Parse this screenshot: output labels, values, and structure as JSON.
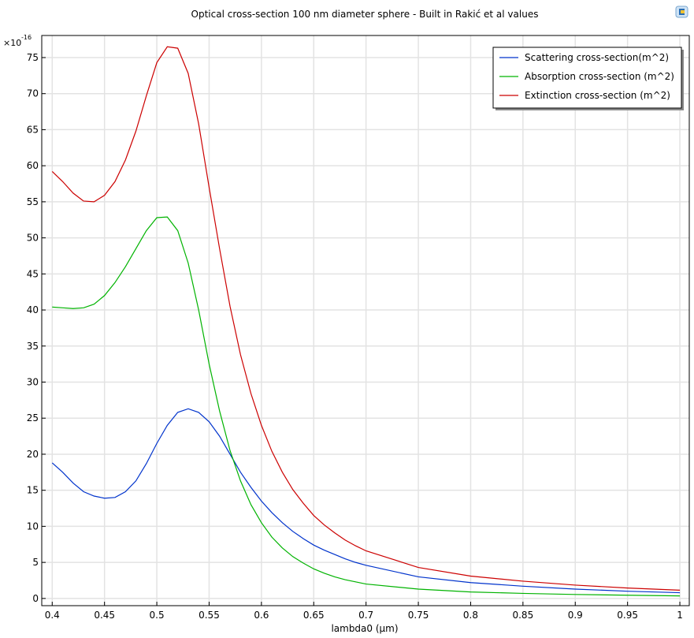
{
  "chart_data": {
    "type": "line",
    "title": "Optical cross-section 100 nm diameter sphere - Built in Rakić et al values",
    "x_label": "lambda0 (µm)",
    "y_multiplier_base": "×10",
    "y_multiplier_exponent": "-16",
    "x": [
      0.4,
      0.41,
      0.42,
      0.43,
      0.44,
      0.45,
      0.46,
      0.47,
      0.48,
      0.49,
      0.5,
      0.51,
      0.52,
      0.53,
      0.54,
      0.55,
      0.56,
      0.57,
      0.58,
      0.59,
      0.6,
      0.61,
      0.62,
      0.63,
      0.64,
      0.65,
      0.66,
      0.67,
      0.68,
      0.69,
      0.7,
      0.75,
      0.8,
      0.85,
      0.9,
      0.95,
      1.0
    ],
    "series": [
      {
        "name": "Scattering cross-section(m^2)",
        "color": "#0033cc",
        "values": [
          18.8,
          17.5,
          16.0,
          14.8,
          14.2,
          13.9,
          14.0,
          14.8,
          16.3,
          18.7,
          21.5,
          24.0,
          25.8,
          26.3,
          25.8,
          24.5,
          22.5,
          20.0,
          17.5,
          15.4,
          13.5,
          11.9,
          10.5,
          9.3,
          8.3,
          7.4,
          6.7,
          6.1,
          5.5,
          5.0,
          4.6,
          3.0,
          2.2,
          1.7,
          1.3,
          1.0,
          0.8
        ]
      },
      {
        "name": "Absorption cross-section (m^2)",
        "color": "#00b300",
        "values": [
          40.4,
          40.3,
          40.2,
          40.3,
          40.8,
          42.0,
          43.8,
          46.0,
          48.5,
          51.0,
          52.8,
          52.9,
          51.0,
          46.5,
          40.0,
          32.5,
          26.0,
          20.5,
          16.3,
          13.0,
          10.5,
          8.5,
          7.0,
          5.8,
          4.9,
          4.1,
          3.5,
          3.0,
          2.6,
          2.3,
          2.0,
          1.3,
          0.9,
          0.7,
          0.55,
          0.45,
          0.35
        ]
      },
      {
        "name": "Extinction cross-section (m^2)",
        "color": "#cc0000",
        "values": [
          59.2,
          57.8,
          56.2,
          55.1,
          55.0,
          55.9,
          57.8,
          60.8,
          64.8,
          69.7,
          74.3,
          76.5,
          76.3,
          72.8,
          65.8,
          57.0,
          48.5,
          40.5,
          33.8,
          28.4,
          24.0,
          20.4,
          17.5,
          15.1,
          13.2,
          11.5,
          10.2,
          9.1,
          8.1,
          7.3,
          6.6,
          4.3,
          3.1,
          2.4,
          1.85,
          1.45,
          1.15
        ]
      }
    ],
    "xlim": [
      0.39,
      1.009
    ],
    "ylim": [
      -1,
      78.06
    ],
    "xticks": [
      0.4,
      0.45,
      0.5,
      0.55,
      0.6,
      0.65,
      0.7,
      0.75,
      0.8,
      0.85,
      0.9,
      0.95,
      1
    ],
    "yticks": [
      0,
      5,
      10,
      15,
      20,
      25,
      30,
      35,
      40,
      45,
      50,
      55,
      60,
      65,
      70,
      75
    ],
    "grid": true,
    "legend": "top-right"
  }
}
